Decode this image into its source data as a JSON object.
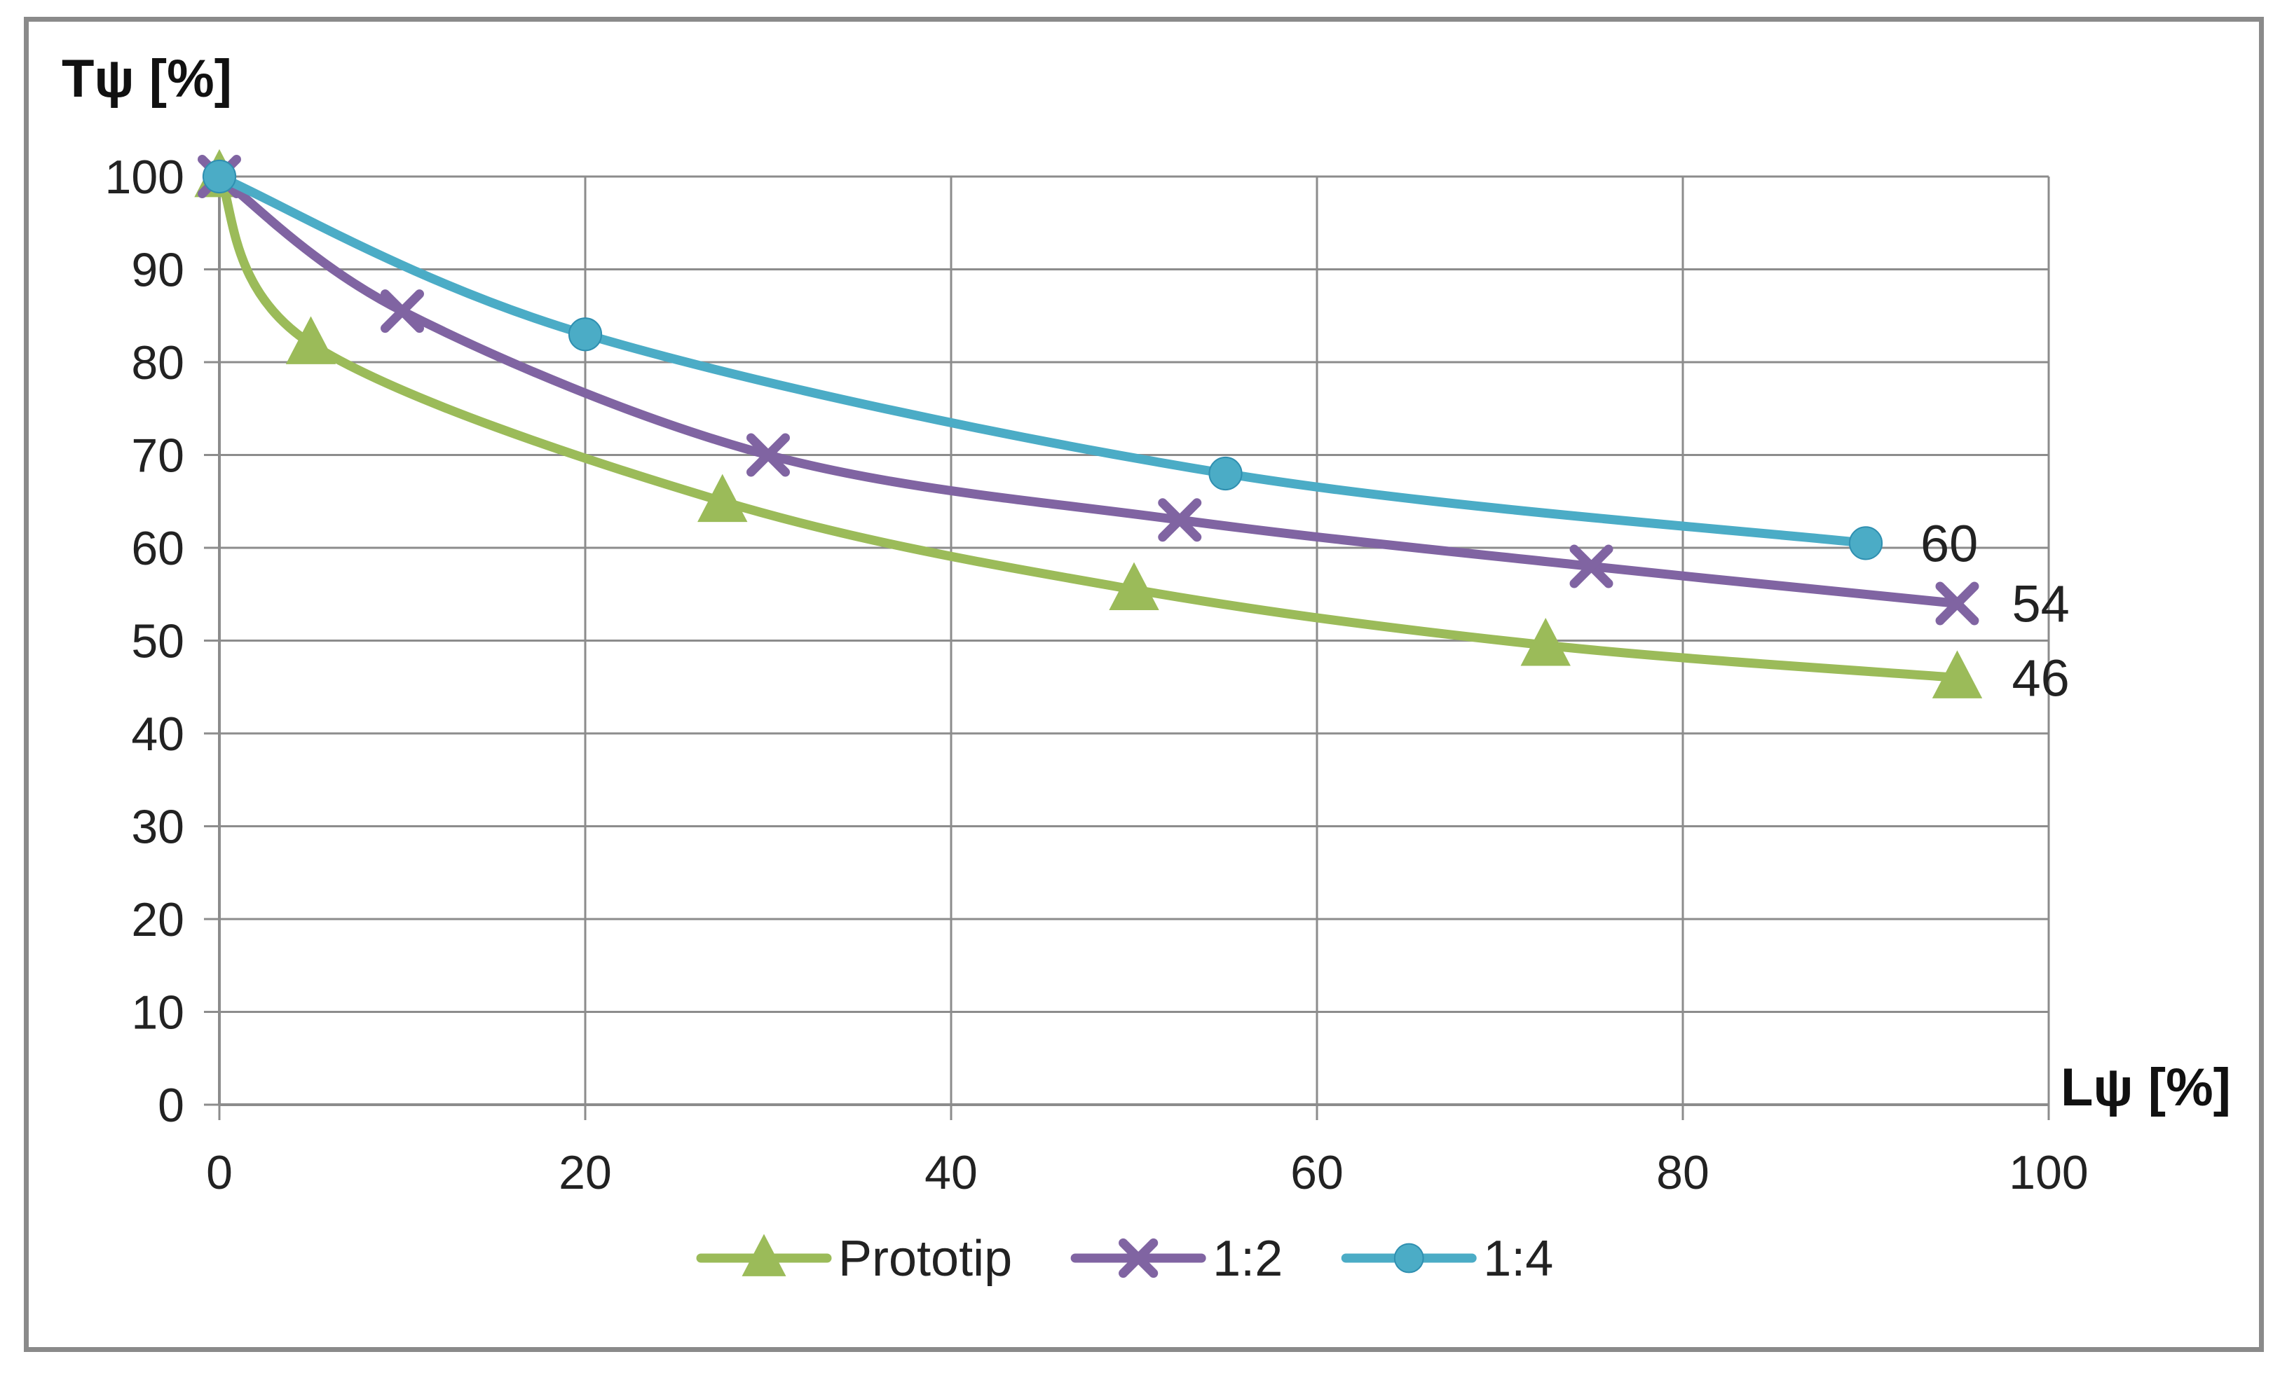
{
  "chart_data": {
    "type": "line",
    "title": "",
    "xlabel": "Lψ [%]",
    "ylabel": "Tψ [%]",
    "xlim": [
      0,
      100
    ],
    "ylim": [
      0,
      100
    ],
    "x_ticks": [
      0,
      20,
      40,
      60,
      80,
      100
    ],
    "y_ticks": [
      0,
      10,
      20,
      30,
      40,
      50,
      60,
      70,
      80,
      90,
      100
    ],
    "grid": true,
    "legend_position": "bottom",
    "series": [
      {
        "name": "Prototip",
        "color": "#9bbb59",
        "marker": "triangle",
        "x": [
          0,
          5,
          27.5,
          50,
          72.5,
          95
        ],
        "y": [
          100,
          82,
          65,
          55.5,
          49.5,
          46
        ],
        "end_label": "46"
      },
      {
        "name": "1:2",
        "color": "#8064a2",
        "marker": "x",
        "x": [
          0,
          10,
          30,
          52.5,
          75,
          95
        ],
        "y": [
          100,
          85.5,
          70,
          63,
          58,
          54
        ],
        "end_label": "54"
      },
      {
        "name": "1:4",
        "color": "#4bacc6",
        "marker": "circle",
        "x": [
          0,
          20,
          55,
          90
        ],
        "y": [
          100,
          83,
          68,
          60.5
        ],
        "end_label": "60"
      }
    ]
  }
}
